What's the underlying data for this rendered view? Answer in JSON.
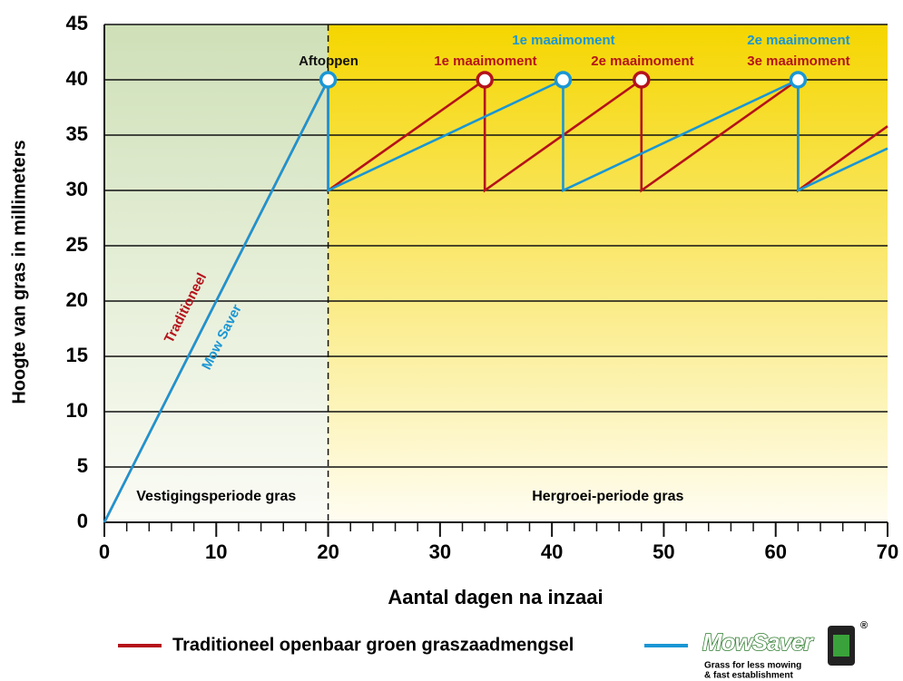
{
  "chart_data": {
    "type": "line",
    "xlabel": "Aantal dagen na inzaai",
    "ylabel": "Hoogte van gras in millimeters",
    "xlim": [
      0,
      70
    ],
    "ylim": [
      0,
      45
    ],
    "xticks": [
      0,
      10,
      20,
      30,
      40,
      50,
      60,
      70
    ],
    "xticks_minor": [
      2,
      4,
      6,
      8,
      12,
      14,
      16,
      18,
      22,
      24,
      26,
      28,
      32,
      34,
      36,
      38,
      42,
      44,
      46,
      48,
      52,
      54,
      56,
      58,
      62,
      64,
      66,
      68
    ],
    "yticks": [
      0,
      5,
      10,
      15,
      20,
      25,
      30,
      35,
      40,
      45
    ],
    "grid": true,
    "series": [
      {
        "name": "Traditioneel openbaar groen graszaadmengsel",
        "label": "Traditioneel",
        "color": "#b5121b",
        "x": [
          0,
          20,
          20,
          34,
          34,
          48,
          48,
          62,
          62,
          70
        ],
        "values": [
          0,
          40,
          30,
          40,
          30,
          40,
          30,
          40,
          30,
          35.8
        ]
      },
      {
        "name": "MowSaver",
        "label": "Mow Saver",
        "color": "#1a96d4",
        "x": [
          0,
          20,
          20,
          41,
          41,
          62,
          62,
          70
        ],
        "values": [
          0,
          40,
          30,
          40,
          30,
          40,
          30,
          33.8
        ]
      }
    ],
    "cut_points": [
      {
        "x": 20,
        "y": 40,
        "color": "#1a96d4"
      },
      {
        "x": 34,
        "y": 40,
        "color": "#b5121b"
      },
      {
        "x": 41,
        "y": 40,
        "color": "#1a96d4"
      },
      {
        "x": 48,
        "y": 40,
        "color": "#b5121b"
      },
      {
        "x": 62,
        "y": 40,
        "color": "#1a96d4"
      }
    ],
    "annotations": [
      {
        "text": "Aftoppen",
        "color": "#111111"
      },
      {
        "text": "1e maaimoment",
        "color": "#b5121b"
      },
      {
        "text": "1e maaimoment",
        "color": "#1a96d4"
      },
      {
        "text": "2e maaimoment",
        "color": "#b5121b"
      },
      {
        "text": "2e maaimoment",
        "color": "#1a96d4"
      },
      {
        "text": "3e maaimoment",
        "color": "#b5121b"
      }
    ],
    "periods": [
      "Vestigingsperiode gras",
      "Hergroei-periode gras"
    ],
    "logo": {
      "text": "MowSaver",
      "registered": "®",
      "tagline": [
        "Grass for less mowing",
        "& fast establishment"
      ]
    }
  }
}
